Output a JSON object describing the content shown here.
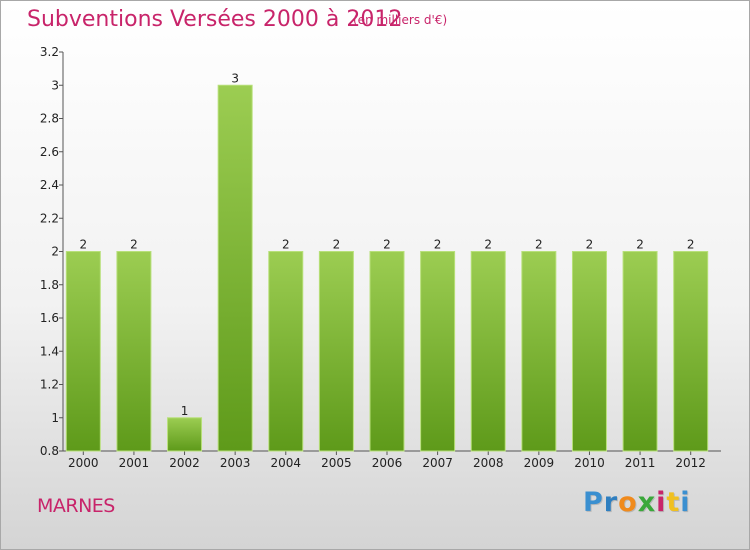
{
  "title": "Subventions Versées 2000 à 2012",
  "subtitle": "(en milliers d'€)",
  "commune": "MARNES",
  "logo": {
    "letters": [
      "P",
      "r",
      "o",
      "x",
      "i",
      "t",
      "i"
    ],
    "colors": [
      "#3a8fd0",
      "#2f7fc0",
      "#f08a1c",
      "#3aa83a",
      "#c8246a",
      "#f0c020",
      "#3a8fd0"
    ]
  },
  "colors": {
    "accent": "#c8246a",
    "bar_top": "#9ccd52",
    "bar_bottom": "#5e9a1a"
  },
  "chart_data": {
    "type": "bar",
    "categories": [
      "2000",
      "2001",
      "2002",
      "2003",
      "2004",
      "2005",
      "2006",
      "2007",
      "2008",
      "2009",
      "2010",
      "2011",
      "2012"
    ],
    "values": [
      2,
      2,
      1,
      3,
      2,
      2,
      2,
      2,
      2,
      2,
      2,
      2,
      2
    ],
    "data_labels": [
      "2",
      "2",
      "1",
      "3",
      "2",
      "2",
      "2",
      "2",
      "2",
      "2",
      "2",
      "2",
      "2"
    ],
    "title": "Subventions Versées 2000 à 2012",
    "xlabel": "",
    "ylabel": "",
    "ylim": [
      0.8,
      3.2
    ],
    "yticks": [
      0.8,
      1,
      1.2,
      1.4,
      1.6,
      1.8,
      2,
      2.2,
      2.4,
      2.6,
      2.8,
      3,
      3.2
    ],
    "ytick_labels": [
      "0.8",
      "1",
      "1.2",
      "1.4",
      "1.6",
      "1.8",
      "2",
      "2.2",
      "2.4",
      "2.6",
      "2.8",
      "3",
      "3.2"
    ],
    "grid": false,
    "legend": "none"
  }
}
